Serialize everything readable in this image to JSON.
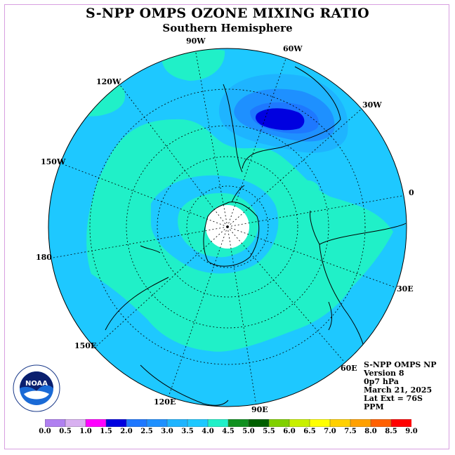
{
  "title": "S-NPP OMPS OZONE MIXING RATIO",
  "subtitle": "Southern Hemisphere",
  "longitude_labels": {
    "w90": "90W",
    "w60": "60W",
    "w30": "30W",
    "w120": "120W",
    "w150": "150W",
    "e0": "0",
    "w180": "180",
    "e30": "30E",
    "e150": "150E",
    "e60": "60E",
    "e120": "120E",
    "e90": "90E"
  },
  "info": {
    "instrument": "S-NPP OMPS NP",
    "version": "Version 8",
    "level": "0p7 hPa",
    "date": "March 21, 2025",
    "lat_ext": "Lat Ext = 76S",
    "units": "PPM"
  },
  "logo": {
    "text": "NOAA",
    "ring_text": "NATIONAL OCEANIC AND ATMOSPHERIC ADMINISTRATION"
  },
  "colorbar": {
    "labels": [
      "0.0",
      "0.5",
      "1.0",
      "1.5",
      "2.0",
      "2.5",
      "3.0",
      "3.5",
      "4.0",
      "4.5",
      "5.0",
      "5.5",
      "6.0",
      "6.5",
      "7.0",
      "7.5",
      "8.0",
      "8.5",
      "9.0"
    ],
    "colors": [
      "#b080f0",
      "#d8b0f0",
      "#ff00ff",
      "#0000e0",
      "#1e78ff",
      "#1e90ff",
      "#1eb4ff",
      "#1ec8ff",
      "#20f0c8",
      "#109020",
      "#006000",
      "#80d000",
      "#c8f000",
      "#ffff00",
      "#ffd000",
      "#ffa000",
      "#ff6000",
      "#ff0000",
      "#8b5a3c"
    ]
  },
  "map_colors": {
    "base": "#1ec8ff",
    "band_3_5_4_0": "#20f0c8",
    "band_2_5_3_0": "#1eb4ff",
    "band_2_0_2_5": "#1e90ff",
    "band_1_5_2_0": "#1e78ff",
    "band_1_0_1_5": "#0000e0",
    "polar_cap": "#ffffff"
  }
}
